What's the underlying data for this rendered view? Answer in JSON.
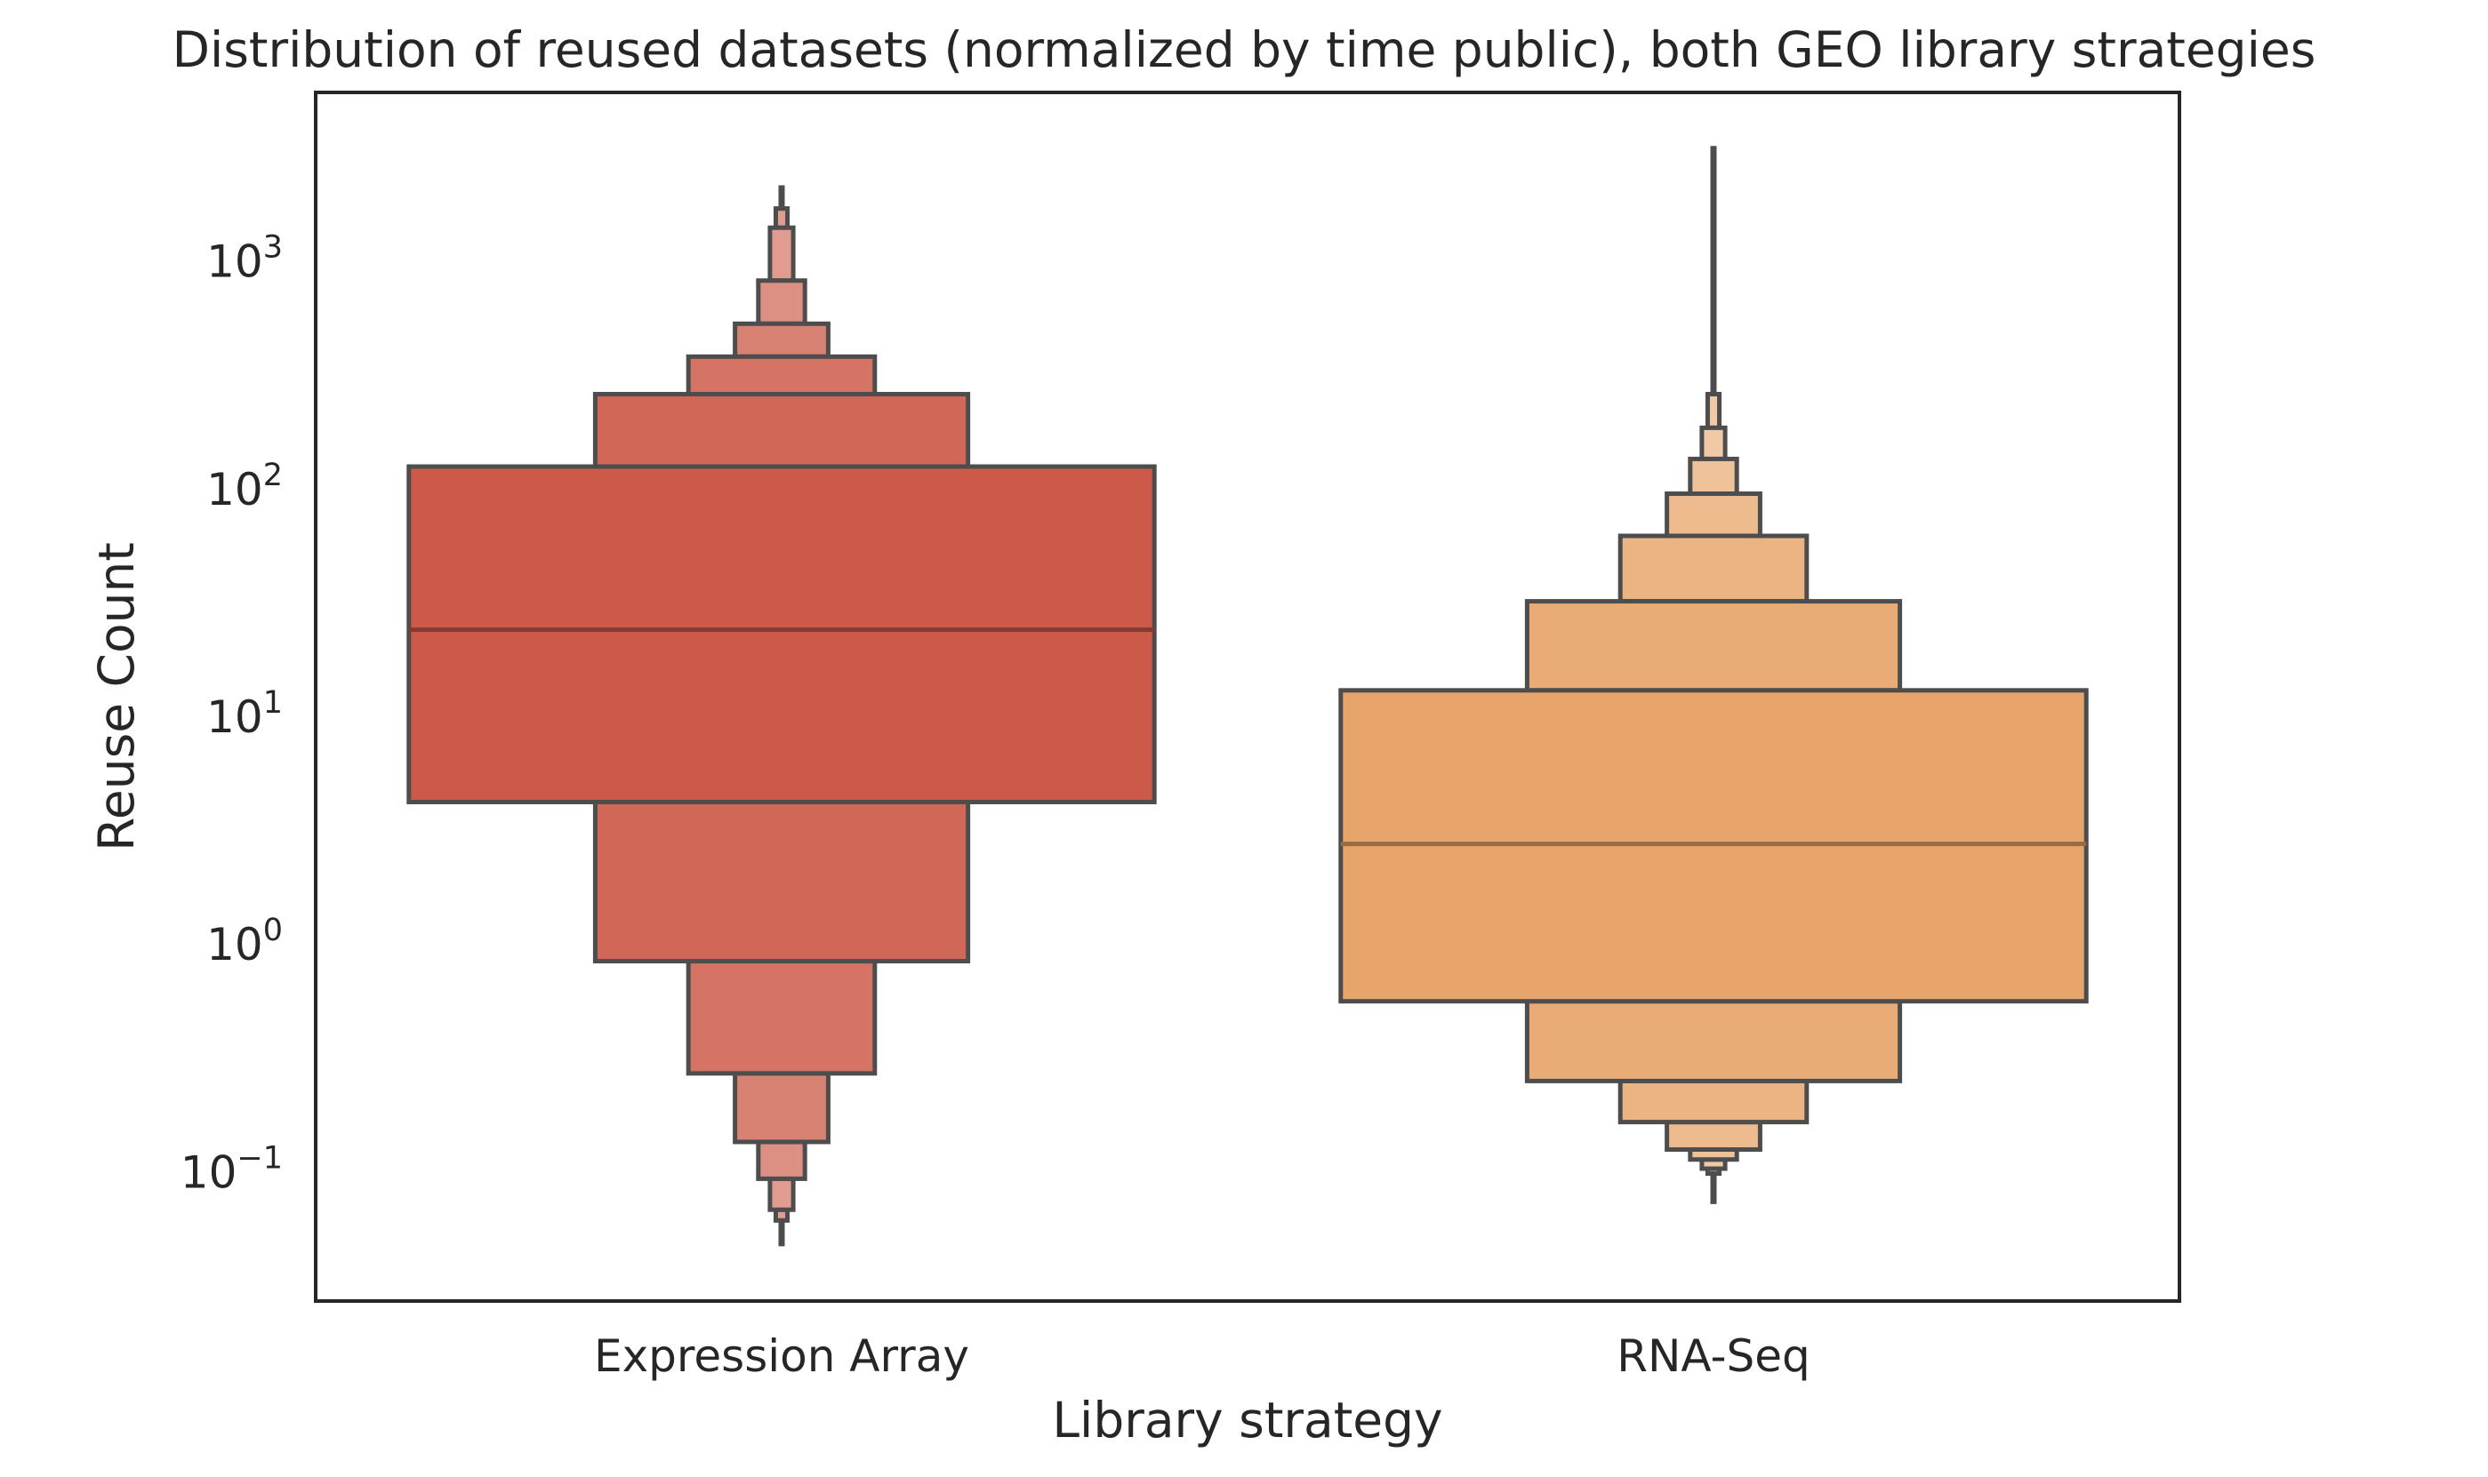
{
  "chart_data": {
    "type": "boxen",
    "title": "Distribution of reused datasets (normalized by time public), both GEO library strategies",
    "xlabel": "Library strategy",
    "ylabel": "Reuse Count",
    "yscale": "log",
    "ylim": [
      0.027,
      5500
    ],
    "yticks": [
      {
        "value": 0.1,
        "base": "10",
        "exp": "−1"
      },
      {
        "value": 1,
        "base": "10",
        "exp": "0"
      },
      {
        "value": 10,
        "base": "10",
        "exp": "1"
      },
      {
        "value": 100,
        "base": "10",
        "exp": "2"
      },
      {
        "value": 1000,
        "base": "10",
        "exp": "3"
      }
    ],
    "grid": false,
    "categories": [
      "Expression Array",
      "RNA-Seq"
    ],
    "series": [
      {
        "category": "Expression Array",
        "color": "#cc5a48",
        "median": 24,
        "boxes": [
          {
            "low": 4.2,
            "high": 125
          },
          {
            "low": 0.84,
            "high": 260
          },
          {
            "low": 0.27,
            "high": 380
          },
          {
            "low": 0.135,
            "high": 530
          },
          {
            "low": 0.093,
            "high": 820
          },
          {
            "low": 0.068,
            "high": 1400
          },
          {
            "low": 0.061,
            "high": 1700
          }
        ],
        "whisker": {
          "low": 0.047,
          "high": 2150
        }
      },
      {
        "category": "RNA-Seq",
        "color": "#e8a56b",
        "median": 2.75,
        "boxes": [
          {
            "low": 0.56,
            "high": 13
          },
          {
            "low": 0.25,
            "high": 32
          },
          {
            "low": 0.165,
            "high": 62
          },
          {
            "low": 0.125,
            "high": 95
          },
          {
            "low": 0.113,
            "high": 135
          },
          {
            "low": 0.103,
            "high": 185
          },
          {
            "low": 0.098,
            "high": 260
          }
        ],
        "whisker": {
          "low": 0.072,
          "high": 3200
        }
      }
    ]
  }
}
